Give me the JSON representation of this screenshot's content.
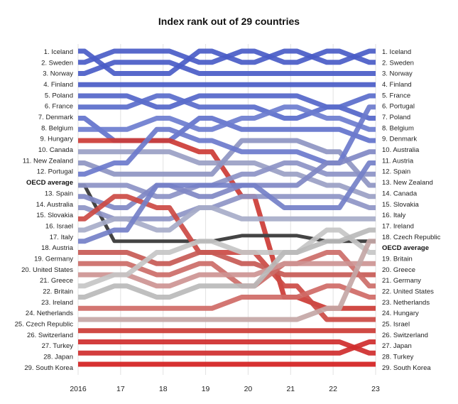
{
  "chart_data": {
    "type": "line",
    "subtype": "bump",
    "title": "Index rank out of 29 countries",
    "x": [
      "2016",
      "17",
      "18",
      "19",
      "20",
      "21",
      "22",
      "23"
    ],
    "y_direction": "rank 1 at top",
    "series": [
      {
        "name": "Iceland",
        "color": "#4a5cc7",
        "ranks": [
          1,
          3,
          3,
          1,
          2,
          1,
          2,
          1
        ]
      },
      {
        "name": "Sweden",
        "color": "#4a5cc7",
        "ranks": [
          2,
          1,
          1,
          2,
          1,
          2,
          1,
          2
        ]
      },
      {
        "name": "Norway",
        "color": "#4a5cc7",
        "ranks": [
          3,
          2,
          2,
          3,
          3,
          3,
          3,
          3
        ]
      },
      {
        "name": "Finland",
        "color": "#4a5cc7",
        "ranks": [
          4,
          4,
          4,
          4,
          4,
          4,
          4,
          4
        ]
      },
      {
        "name": "Poland",
        "color": "#5466c9",
        "ranks": [
          5,
          5,
          6,
          5,
          5,
          5,
          6,
          7
        ]
      },
      {
        "name": "France",
        "color": "#5a6ccb",
        "ranks": [
          6,
          6,
          5,
          6,
          6,
          7,
          6,
          5
        ]
      },
      {
        "name": "Denmark",
        "color": "#6373cc",
        "ranks": [
          7,
          9,
          9,
          7,
          8,
          8,
          8,
          9
        ]
      },
      {
        "name": "Belgium",
        "color": "#6d7dcf",
        "ranks": [
          8,
          8,
          7,
          8,
          7,
          6,
          7,
          8
        ]
      },
      {
        "name": "Hungary",
        "color": "#cc3b35",
        "ranks": [
          9,
          9,
          9,
          10,
          14,
          23,
          24,
          24
        ]
      },
      {
        "name": "Canada",
        "color": "#9aa0c4",
        "ranks": [
          10,
          10,
          10,
          11,
          11,
          12,
          13,
          14
        ]
      },
      {
        "name": "New Zealand",
        "color": "#8e95c2",
        "ranks": [
          11,
          12,
          12,
          12,
          9,
          9,
          10,
          13
        ]
      },
      {
        "name": "Portugal",
        "color": "#6b79cc",
        "ranks": [
          12,
          11,
          8,
          9,
          10,
          10,
          11,
          6
        ]
      },
      {
        "name": "OECD average",
        "color": "#444444",
        "ranks": [
          13,
          18,
          18,
          18,
          17.5,
          17.5,
          18,
          18
        ]
      },
      {
        "name": "Spain",
        "color": "#8c93c5",
        "ranks": [
          13,
          13,
          14,
          13,
          12,
          11,
          12,
          12
        ]
      },
      {
        "name": "Australia",
        "color": "#8088c4",
        "ranks": [
          14,
          15,
          13,
          14,
          13,
          13,
          11,
          10
        ]
      },
      {
        "name": "Slovakia",
        "color": "#8e95c6",
        "ranks": [
          15,
          16,
          16,
          15,
          14,
          14,
          14,
          15
        ]
      },
      {
        "name": "Israel",
        "color": "#cc4a44",
        "ranks": [
          16,
          14,
          15,
          19,
          19,
          22,
          25,
          25
        ]
      },
      {
        "name": "Italy",
        "color": "#a7acc9",
        "ranks": [
          17,
          16,
          17,
          15,
          16,
          16,
          16,
          16
        ]
      },
      {
        "name": "Austria",
        "color": "#7480c8",
        "ranks": [
          18,
          17,
          13,
          13,
          13,
          15,
          15,
          11
        ]
      },
      {
        "name": "Germany",
        "color": "#c75a55",
        "ranks": [
          19,
          19,
          20,
          19,
          20,
          21,
          21,
          21
        ]
      },
      {
        "name": "United States",
        "color": "#cc6d68",
        "ranks": [
          20,
          20,
          21,
          20,
          22,
          20,
          19,
          22
        ]
      },
      {
        "name": "Greece",
        "color": "#cd9492",
        "ranks": [
          21,
          21,
          22,
          21,
          21,
          20,
          20,
          20
        ]
      },
      {
        "name": "Britain",
        "color": "#c6c6c6",
        "ranks": [
          22,
          21,
          19,
          18,
          19,
          19,
          17,
          19
        ]
      },
      {
        "name": "Ireland",
        "color": "#bababa",
        "ranks": [
          23,
          22,
          23,
          22,
          22,
          19,
          18,
          17
        ]
      },
      {
        "name": "Netherlands",
        "color": "#cf6a66",
        "ranks": [
          24,
          24,
          24,
          24,
          23,
          23,
          22,
          23
        ]
      },
      {
        "name": "Czech Republic",
        "color": "#c4a7a6",
        "ranks": [
          25,
          25,
          25,
          25,
          25,
          25,
          24,
          18
        ]
      },
      {
        "name": "Switzerland",
        "color": "#cc3b35",
        "ranks": [
          26,
          26,
          26,
          26,
          26,
          26,
          26,
          26
        ]
      },
      {
        "name": "Turkey",
        "color": "#cf2c2c",
        "ranks": [
          27,
          27,
          27,
          27,
          27,
          27,
          27,
          28
        ]
      },
      {
        "name": "Japan",
        "color": "#cf2c2c",
        "ranks": [
          28,
          28,
          28,
          28,
          28,
          28,
          28,
          27
        ]
      },
      {
        "name": "South Korea",
        "color": "#d42020",
        "ranks": [
          29,
          29,
          29,
          29,
          29,
          29,
          29,
          29
        ]
      }
    ],
    "left_labels": [
      "1. Iceland",
      "2. Sweden",
      "3. Norway",
      "4. Finland",
      "5. Poland",
      "6. France",
      "7. Denmark",
      "8. Belgium",
      "9. Hungary",
      "10. Canada",
      "11. New Zealand",
      "12. Portugal",
      "OECD average",
      "13. Spain",
      "14. Australia",
      "15. Slovakia",
      "16. Israel",
      "17. Italy",
      "18. Austria",
      "19. Germany",
      "20. United States",
      "21. Greece",
      "22. Britain",
      "23. Ireland",
      "24. Netherlands",
      "25. Czech Republic",
      "26. Switzerland",
      "27. Turkey",
      "28. Japan",
      "29. South Korea"
    ],
    "right_labels": [
      "1. Iceland",
      "2. Sweden",
      "3. Norway",
      "4. Finland",
      "5. France",
      "6. Portugal",
      "7. Poland",
      "8. Belgium",
      "9. Denmark",
      "10. Australia",
      "11. Austria",
      "12. Spain",
      "13. New Zealand",
      "14. Canada",
      "15. Slovakia",
      "16. Italy",
      "17. Ireland",
      "18. Czech Republic",
      "OECD average",
      "19. Britain",
      "20. Greece",
      "21. Germany",
      "22. United States",
      "23. Netherlands",
      "24. Hungary",
      "25. Israel",
      "26. Switzerland",
      "27. Japan",
      "28. Turkey",
      "29. South Korea"
    ]
  }
}
